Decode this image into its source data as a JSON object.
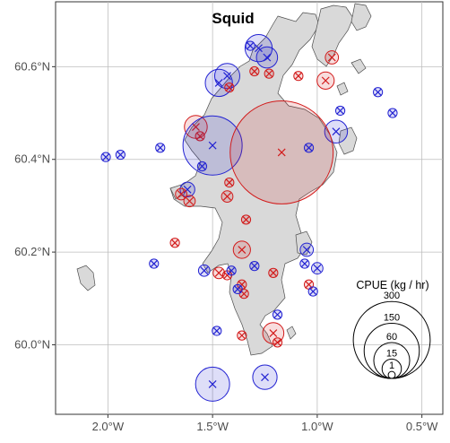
{
  "title": "Squid",
  "axes": {
    "x_ticks": [
      {
        "lon": -2.0,
        "label": "2.0°W"
      },
      {
        "lon": -1.5,
        "label": "1.5°W"
      },
      {
        "lon": -1.0,
        "label": "1.0°W"
      },
      {
        "lon": -0.5,
        "label": "0.5°W"
      }
    ],
    "y_ticks": [
      {
        "lat": 60.0,
        "label": "60.0°N"
      },
      {
        "lat": 60.2,
        "label": "60.2°N"
      },
      {
        "lat": 60.4,
        "label": "60.4°N"
      },
      {
        "lat": 60.6,
        "label": "60.6°N"
      }
    ],
    "xlim": [
      -2.25,
      -0.4
    ],
    "ylim": [
      59.85,
      60.74
    ]
  },
  "colors": {
    "panel_bg": "#ebebeb",
    "grid": "#bdbdbd",
    "land": "#d9d9d9",
    "coast": "#4d4d4d",
    "blue": "#2323d2",
    "red": "#d21a1a"
  },
  "legend": {
    "title": "CPUE (kg / hr)",
    "sizes": [
      {
        "value": 300,
        "label": "300"
      },
      {
        "value": 150,
        "label": "150"
      },
      {
        "value": 60,
        "label": "60"
      },
      {
        "value": 15,
        "label": "15"
      },
      {
        "value": 1,
        "label": "1"
      }
    ]
  },
  "chart_data": {
    "type": "scatter",
    "title": "Squid",
    "xlabel": "",
    "ylabel": "",
    "points": [
      {
        "lon": -1.32,
        "lat": 60.645,
        "cpue": 1,
        "color": "blue"
      },
      {
        "lon": -1.28,
        "lat": 60.64,
        "cpue": 18,
        "color": "blue"
      },
      {
        "lon": -1.24,
        "lat": 60.62,
        "cpue": 10,
        "color": "blue"
      },
      {
        "lon": -1.3,
        "lat": 60.59,
        "cpue": 1,
        "color": "red"
      },
      {
        "lon": -1.23,
        "lat": 60.585,
        "cpue": 1,
        "color": "red"
      },
      {
        "lon": -1.43,
        "lat": 60.58,
        "cpue": 15,
        "color": "blue"
      },
      {
        "lon": -1.47,
        "lat": 60.565,
        "cpue": 18,
        "color": "blue"
      },
      {
        "lon": -1.42,
        "lat": 60.555,
        "cpue": 1,
        "color": "red"
      },
      {
        "lon": -1.09,
        "lat": 60.58,
        "cpue": 1,
        "color": "red"
      },
      {
        "lon": -0.93,
        "lat": 60.62,
        "cpue": 3,
        "color": "red"
      },
      {
        "lon": -0.96,
        "lat": 60.57,
        "cpue": 6,
        "color": "red"
      },
      {
        "lon": -0.71,
        "lat": 60.545,
        "cpue": 1,
        "color": "blue"
      },
      {
        "lon": -0.64,
        "lat": 60.5,
        "cpue": 1,
        "color": "blue"
      },
      {
        "lon": -0.89,
        "lat": 60.505,
        "cpue": 1,
        "color": "blue"
      },
      {
        "lon": -0.91,
        "lat": 60.46,
        "cpue": 12,
        "color": "blue"
      },
      {
        "lon": -1.58,
        "lat": 60.47,
        "cpue": 12,
        "color": "red"
      },
      {
        "lon": -1.56,
        "lat": 60.45,
        "cpue": 1,
        "color": "red"
      },
      {
        "lon": -1.5,
        "lat": 60.43,
        "cpue": 100,
        "color": "blue"
      },
      {
        "lon": -1.17,
        "lat": 60.415,
        "cpue": 320,
        "color": "red"
      },
      {
        "lon": -1.04,
        "lat": 60.425,
        "cpue": 1,
        "color": "blue"
      },
      {
        "lon": -1.75,
        "lat": 60.425,
        "cpue": 1,
        "color": "blue"
      },
      {
        "lon": -1.94,
        "lat": 60.41,
        "cpue": 1,
        "color": "blue"
      },
      {
        "lon": -2.01,
        "lat": 60.405,
        "cpue": 1,
        "color": "blue"
      },
      {
        "lon": -1.55,
        "lat": 60.385,
        "cpue": 1,
        "color": "blue"
      },
      {
        "lon": -1.62,
        "lat": 60.335,
        "cpue": 4,
        "color": "blue"
      },
      {
        "lon": -1.65,
        "lat": 60.325,
        "cpue": 2,
        "color": "red"
      },
      {
        "lon": -1.61,
        "lat": 60.31,
        "cpue": 2,
        "color": "red"
      },
      {
        "lon": -1.43,
        "lat": 60.32,
        "cpue": 2,
        "color": "red"
      },
      {
        "lon": -1.42,
        "lat": 60.35,
        "cpue": 1,
        "color": "red"
      },
      {
        "lon": -1.34,
        "lat": 60.27,
        "cpue": 1,
        "color": "red"
      },
      {
        "lon": -1.68,
        "lat": 60.22,
        "cpue": 1,
        "color": "red"
      },
      {
        "lon": -1.36,
        "lat": 60.205,
        "cpue": 6,
        "color": "red"
      },
      {
        "lon": -1.05,
        "lat": 60.205,
        "cpue": 3,
        "color": "blue"
      },
      {
        "lon": -1.06,
        "lat": 60.175,
        "cpue": 1,
        "color": "blue"
      },
      {
        "lon": -1.78,
        "lat": 60.175,
        "cpue": 1,
        "color": "blue"
      },
      {
        "lon": -1.54,
        "lat": 60.16,
        "cpue": 2,
        "color": "blue"
      },
      {
        "lon": -1.47,
        "lat": 60.155,
        "cpue": 2,
        "color": "red"
      },
      {
        "lon": -1.43,
        "lat": 60.15,
        "cpue": 1,
        "color": "red"
      },
      {
        "lon": -1.41,
        "lat": 60.16,
        "cpue": 1,
        "color": "blue"
      },
      {
        "lon": -1.21,
        "lat": 60.155,
        "cpue": 1,
        "color": "red"
      },
      {
        "lon": -1.0,
        "lat": 60.165,
        "cpue": 2,
        "color": "blue"
      },
      {
        "lon": -1.3,
        "lat": 60.17,
        "cpue": 1,
        "color": "blue"
      },
      {
        "lon": -1.04,
        "lat": 60.13,
        "cpue": 1,
        "color": "red"
      },
      {
        "lon": -1.02,
        "lat": 60.115,
        "cpue": 1,
        "color": "blue"
      },
      {
        "lon": -1.36,
        "lat": 60.13,
        "cpue": 1,
        "color": "red"
      },
      {
        "lon": -1.35,
        "lat": 60.11,
        "cpue": 1,
        "color": "red"
      },
      {
        "lon": -1.38,
        "lat": 60.12,
        "cpue": 1,
        "color": "blue"
      },
      {
        "lon": -1.19,
        "lat": 60.065,
        "cpue": 1,
        "color": "blue"
      },
      {
        "lon": -1.48,
        "lat": 60.03,
        "cpue": 1,
        "color": "blue"
      },
      {
        "lon": -1.36,
        "lat": 60.02,
        "cpue": 1,
        "color": "red"
      },
      {
        "lon": -1.21,
        "lat": 60.025,
        "cpue": 10,
        "color": "red"
      },
      {
        "lon": -1.19,
        "lat": 60.005,
        "cpue": 1,
        "color": "red"
      },
      {
        "lon": -1.5,
        "lat": 59.915,
        "cpue": 30,
        "color": "blue"
      },
      {
        "lon": -1.25,
        "lat": 59.93,
        "cpue": 14,
        "color": "blue"
      }
    ]
  }
}
